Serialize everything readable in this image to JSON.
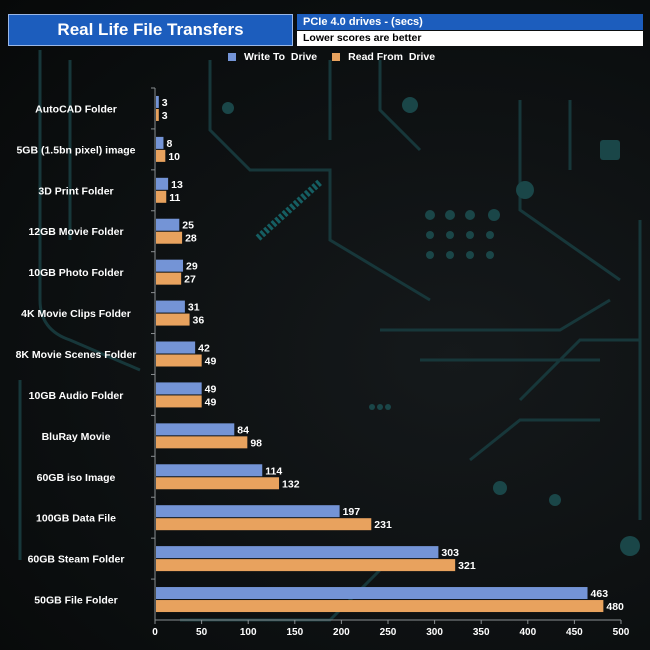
{
  "chart_data": {
    "type": "bar",
    "orientation": "horizontal",
    "title": "Real Life File Transfers",
    "subtitle": "PCIe 4.0 drives - (secs)",
    "note": "Lower scores are better",
    "categories": [
      "AutoCAD Folder",
      "5GB (1.5bn pixel) image",
      "3D Print Folder",
      "12GB Movie Folder",
      "10GB Photo Folder",
      "4K Movie Clips Folder",
      "8K Movie Scenes Folder",
      "10GB Audio Folder",
      "BluRay Movie",
      "60GB iso Image",
      "100GB Data File",
      "60GB Steam Folder",
      "50GB File Folder"
    ],
    "series": [
      {
        "name": "Write To  Drive",
        "color": "#7494d6",
        "values": [
          3,
          8,
          13,
          25,
          29,
          31,
          42,
          49,
          84,
          114,
          197,
          303,
          463
        ]
      },
      {
        "name": "Read From  Drive",
        "color": "#e8a25e",
        "values": [
          3,
          10,
          11,
          28,
          27,
          36,
          49,
          49,
          98,
          132,
          231,
          321,
          480
        ]
      }
    ],
    "xlim": [
      0,
      500
    ],
    "xticks": [
      0,
      50,
      100,
      150,
      200,
      250,
      300,
      350,
      400,
      450,
      500
    ],
    "legend_position": "top-center",
    "grid": false
  }
}
